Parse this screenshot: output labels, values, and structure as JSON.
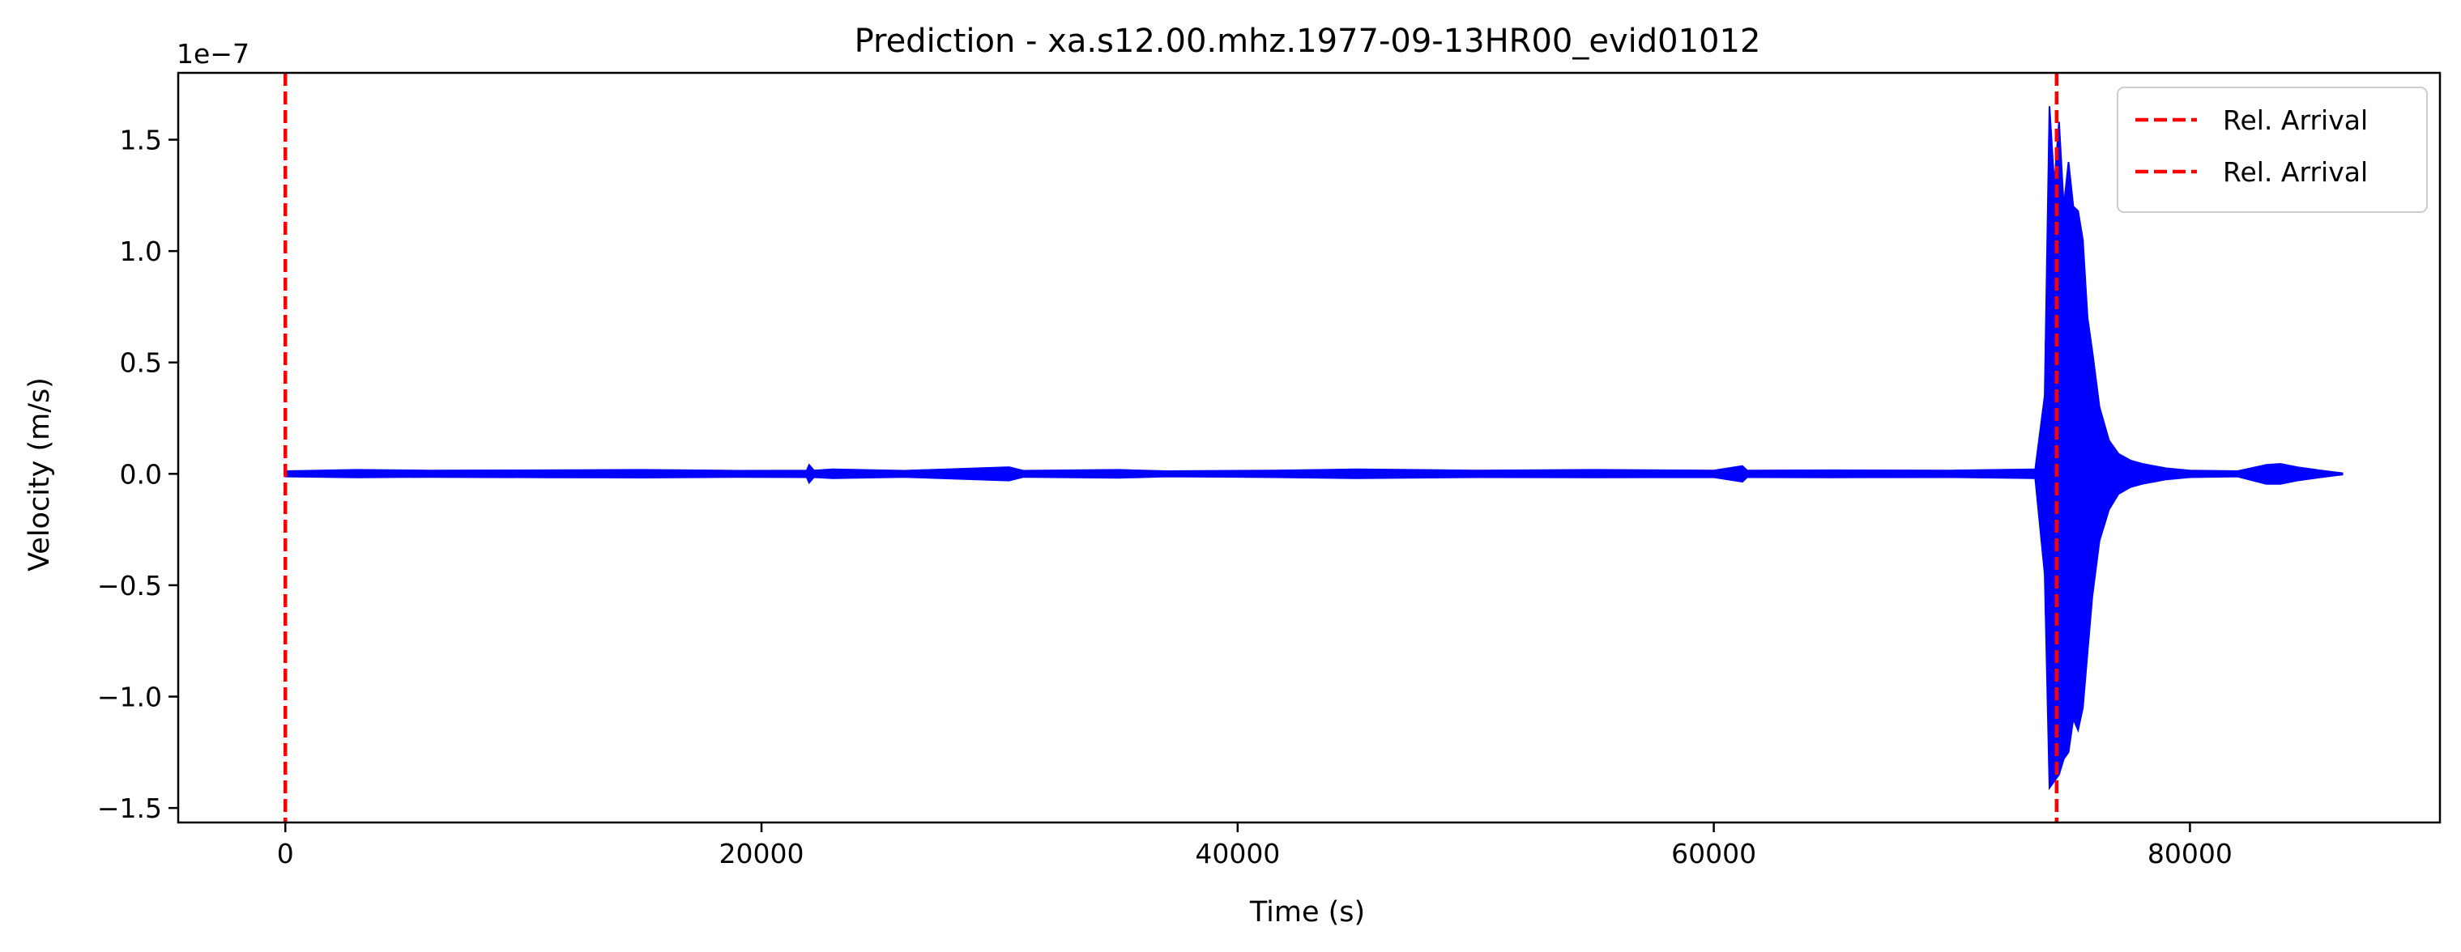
{
  "chart_data": {
    "type": "line",
    "title": "Prediction - xa.s12.00.mhz.1977-09-13HR00_evid01012",
    "xlabel": "Time (s)",
    "ylabel": "Velocity (m/s)",
    "y_offset_text": "1e−7",
    "y_scale_exponent": -7,
    "xlim": [
      -4500,
      90500
    ],
    "ylim": [
      -1.565,
      1.8
    ],
    "grid": false,
    "legend_position": "top-right",
    "x_ticks": [
      {
        "value": 0,
        "label": "0"
      },
      {
        "value": 20000,
        "label": "20000"
      },
      {
        "value": 40000,
        "label": "40000"
      },
      {
        "value": 60000,
        "label": "60000"
      },
      {
        "value": 80000,
        "label": "80000"
      }
    ],
    "y_ticks": [
      {
        "value": -1.5,
        "label": "−1.5"
      },
      {
        "value": -1.0,
        "label": "−1.0"
      },
      {
        "value": -0.5,
        "label": "−0.5"
      },
      {
        "value": 0.0,
        "label": "0.0"
      },
      {
        "value": 0.5,
        "label": "0.5"
      },
      {
        "value": 1.0,
        "label": "1.0"
      },
      {
        "value": 1.5,
        "label": "1.5"
      }
    ],
    "series": [
      {
        "name": "",
        "color": "#0000ff",
        "style": "envelope",
        "x_range": [
          0,
          86400
        ],
        "envelope": [
          [
            0,
            0.012,
            -0.012
          ],
          [
            3000,
            0.018,
            -0.016
          ],
          [
            6000,
            0.015,
            -0.014
          ],
          [
            11000,
            0.016,
            -0.016
          ],
          [
            15000,
            0.018,
            -0.017
          ],
          [
            19000,
            0.014,
            -0.014
          ],
          [
            21900,
            0.015,
            -0.015
          ],
          [
            22000,
            0.04,
            -0.04
          ],
          [
            22200,
            0.015,
            -0.015
          ],
          [
            23000,
            0.02,
            -0.02
          ],
          [
            26000,
            0.014,
            -0.014
          ],
          [
            30400,
            0.03,
            -0.03
          ],
          [
            31000,
            0.014,
            -0.014
          ],
          [
            35000,
            0.018,
            -0.018
          ],
          [
            37000,
            0.012,
            -0.012
          ],
          [
            41500,
            0.015,
            -0.015
          ],
          [
            45000,
            0.02,
            -0.02
          ],
          [
            50000,
            0.015,
            -0.015
          ],
          [
            55000,
            0.018,
            -0.016
          ],
          [
            60000,
            0.015,
            -0.015
          ],
          [
            61200,
            0.035,
            -0.035
          ],
          [
            61400,
            0.015,
            -0.015
          ],
          [
            65000,
            0.016,
            -0.016
          ],
          [
            70000,
            0.015,
            -0.015
          ],
          [
            73500,
            0.02,
            -0.02
          ],
          [
            73900,
            0.35,
            -0.45
          ],
          [
            74100,
            1.65,
            -1.41
          ],
          [
            74300,
            1.3,
            -1.38
          ],
          [
            74500,
            1.58,
            -1.35
          ],
          [
            74700,
            1.2,
            -1.28
          ],
          [
            74900,
            1.4,
            -1.25
          ],
          [
            75100,
            1.2,
            -1.1
          ],
          [
            75300,
            1.18,
            -1.15
          ],
          [
            75500,
            1.05,
            -1.05
          ],
          [
            75700,
            0.7,
            -0.8
          ],
          [
            75900,
            0.55,
            -0.55
          ],
          [
            76200,
            0.3,
            -0.3
          ],
          [
            76600,
            0.15,
            -0.16
          ],
          [
            77000,
            0.09,
            -0.09
          ],
          [
            77500,
            0.06,
            -0.06
          ],
          [
            78000,
            0.045,
            -0.045
          ],
          [
            79000,
            0.025,
            -0.025
          ],
          [
            80000,
            0.015,
            -0.015
          ],
          [
            82000,
            0.012,
            -0.012
          ],
          [
            83200,
            0.04,
            -0.045
          ],
          [
            83800,
            0.045,
            -0.045
          ],
          [
            84500,
            0.03,
            -0.03
          ],
          [
            85500,
            0.015,
            -0.015
          ],
          [
            86400,
            0.003,
            -0.003
          ]
        ]
      },
      {
        "name": "Rel. Arrival",
        "color": "#ff0000",
        "style": "dashed-vline",
        "x": 0
      },
      {
        "name": "Rel. Arrival",
        "color": "#ff0000",
        "style": "dashed-vline",
        "x": 74400
      }
    ]
  }
}
